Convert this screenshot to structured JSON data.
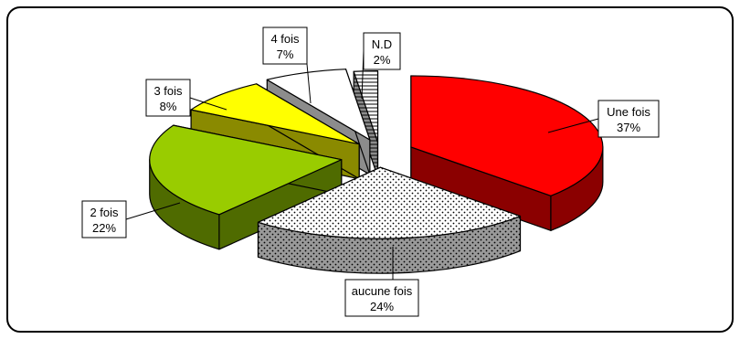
{
  "chart_data": {
    "type": "pie",
    "style": "3d-exploded",
    "slices": [
      {
        "name": "Une fois",
        "value": 37,
        "pct_label": "37%",
        "color": "#ff0000",
        "side_color": "#8b0000",
        "pattern": "solid"
      },
      {
        "name": "aucune fois",
        "value": 24,
        "pct_label": "24%",
        "color": "#ffffff",
        "side_color": "#9a9a9a",
        "pattern": "dots"
      },
      {
        "name": "2 fois",
        "value": 22,
        "pct_label": "22%",
        "color": "#99cc00",
        "side_color": "#4f6b00",
        "pattern": "solid"
      },
      {
        "name": "3 fois",
        "value": 8,
        "pct_label": "8%",
        "color": "#ffff00",
        "side_color": "#8a8a00",
        "pattern": "solid"
      },
      {
        "name": "4 fois",
        "value": 7,
        "pct_label": "7%",
        "color": "#ffffff",
        "side_color": "#8c8c8c",
        "pattern": "solid"
      },
      {
        "name": "N.D",
        "value": 2,
        "pct_label": "2%",
        "color": "#ffffff",
        "side_color": "#8c8c8c",
        "pattern": "hstripes"
      }
    ],
    "legend": "none",
    "border_color": "#000000"
  }
}
